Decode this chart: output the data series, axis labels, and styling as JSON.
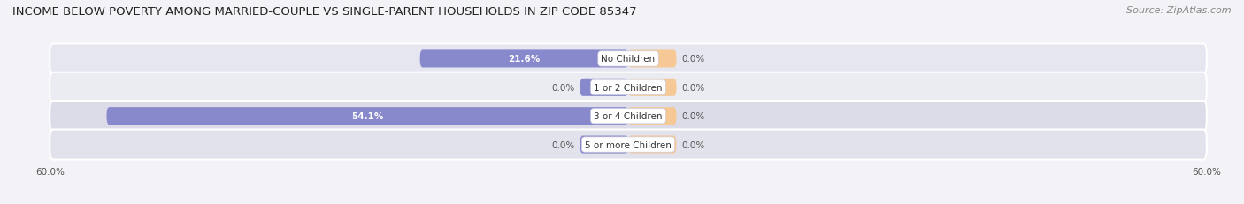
{
  "title": "INCOME BELOW POVERTY AMONG MARRIED-COUPLE VS SINGLE-PARENT HOUSEHOLDS IN ZIP CODE 85347",
  "source": "Source: ZipAtlas.com",
  "categories": [
    "No Children",
    "1 or 2 Children",
    "3 or 4 Children",
    "5 or more Children"
  ],
  "married_values": [
    21.6,
    0.0,
    54.1,
    0.0
  ],
  "single_values": [
    0.0,
    0.0,
    0.0,
    0.0
  ],
  "married_color": "#8888cc",
  "single_color": "#f5c896",
  "axis_limit": 60.0,
  "bg_color": "#f2f2f7",
  "bar_bg_color_light": "#e8e8f0",
  "bar_bg_color_dark": "#dcdce8",
  "title_fontsize": 9.5,
  "source_fontsize": 8,
  "label_fontsize": 7.5,
  "cat_fontsize": 7.5,
  "legend_fontsize": 8,
  "axis_label_fontsize": 7.5,
  "small_married_segment": 5.0,
  "small_single_segment": 5.0
}
